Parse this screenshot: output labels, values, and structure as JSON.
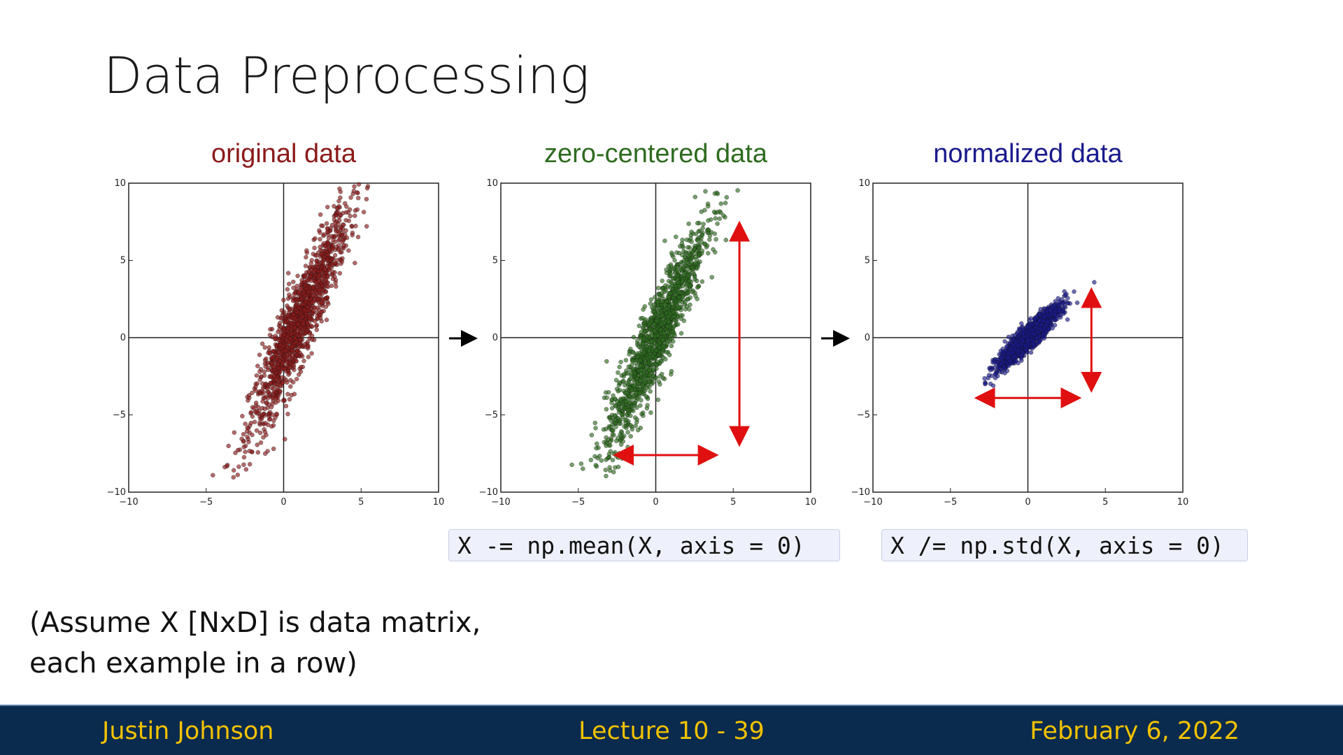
{
  "slide": {
    "title": "Data Preprocessing",
    "note_line1": "(Assume X [NxD] is data matrix,",
    "note_line2": "each example in a row)",
    "code1": "X -= np.mean(X, axis = 0)",
    "code2": "X /= np.std(X, axis = 0)"
  },
  "footer": {
    "author": "Justin Johnson",
    "lecture": "Lecture 10 - 39",
    "date": "February 6, 2022"
  },
  "colors": {
    "original": "#8b1a1a",
    "zero_centered": "#2e6b1f",
    "normalized": "#1a1a8c",
    "arrow": "#e01010",
    "footer_bg": "#0a2a4e",
    "footer_text": "#f2c200"
  },
  "chart_data": [
    {
      "type": "scatter",
      "title": "original data",
      "xlim": [
        -10,
        10
      ],
      "ylim": [
        -10,
        10
      ],
      "xticks": [
        "−10",
        "−5",
        "0",
        "5",
        "10"
      ],
      "yticks": [
        "10",
        "5",
        "0",
        "−5",
        "−10"
      ],
      "cloud": {
        "center": [
          1.0,
          1.0
        ],
        "sx": 1.6,
        "sy": 3.6,
        "corr": 0.92
      }
    },
    {
      "type": "scatter",
      "title": "zero-centered data",
      "xlim": [
        -10,
        10
      ],
      "ylim": [
        -10,
        10
      ],
      "xticks": [
        "−10",
        "−5",
        "0",
        "5",
        "10"
      ],
      "yticks": [
        "10",
        "5",
        "0",
        "−5",
        "−10"
      ],
      "cloud": {
        "center": [
          0,
          0
        ],
        "sx": 1.6,
        "sy": 3.6,
        "corr": 0.92
      },
      "arrows": {
        "horizontal": [
          -2.5,
          3.8,
          -7.6
        ],
        "vertical": [
          5.4,
          7.3,
          -6.8
        ]
      }
    },
    {
      "type": "scatter",
      "title": "normalized data",
      "xlim": [
        -10,
        10
      ],
      "ylim": [
        -10,
        10
      ],
      "xticks": [
        "−10",
        "−5",
        "0",
        "5",
        "10"
      ],
      "yticks": [
        "10",
        "5",
        "0",
        "−5",
        "−10"
      ],
      "cloud": {
        "center": [
          0,
          0
        ],
        "sx": 1.0,
        "sy": 1.0,
        "corr": 0.92
      },
      "arrows": {
        "horizontal": [
          -3.2,
          3.2,
          -3.9
        ],
        "vertical": [
          4.1,
          3.0,
          -3.3
        ]
      }
    }
  ]
}
